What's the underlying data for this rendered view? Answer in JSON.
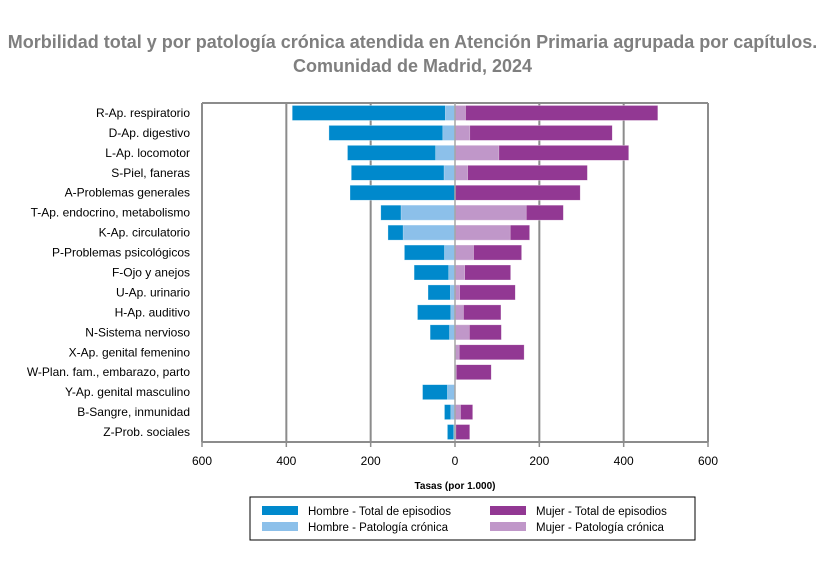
{
  "chart_data": {
    "type": "bar",
    "orientation": "horizontal-population-pyramid",
    "title": "Morbilidad total y por patología crónica atendida en Atención Primaria agrupada por capítulos. Comunidad de Madrid, 2024",
    "xlabel": "Tasas (por 1.000)",
    "ylabel": "",
    "xlim": [
      -600,
      600
    ],
    "xticks": [
      -600,
      -400,
      -200,
      0,
      200,
      400,
      600
    ],
    "xtick_labels": [
      "600",
      "400",
      "200",
      "0",
      "200",
      "400",
      "600"
    ],
    "grid": true,
    "legend_placement": "bottom",
    "categories": [
      "R-Ap. respiratorio",
      "D-Ap. digestivo",
      "L-Ap. locomotor",
      "S-Piel, faneras",
      "A-Problemas generales",
      "T-Ap. endocrino, metabolismo",
      "K-Ap. circulatorio",
      "P-Problemas psicológicos",
      "F-Ojo y anejos",
      "U-Ap. urinario",
      "H-Ap. auditivo",
      "N-Sistema nervioso",
      "X-Ap. genital femenino",
      "W-Plan. fam., embarazo, parto",
      "Y-Ap. genital masculino",
      "B-Sangre, inmunidad",
      "Z-Prob. sociales"
    ],
    "series": [
      {
        "name": "Hombre - Total de episodios",
        "color": "#0089CC",
        "side": "left",
        "values": [
          386,
          299,
          255,
          246,
          249,
          176,
          159,
          120,
          97,
          64,
          89,
          59,
          0,
          0,
          77,
          25,
          18
        ]
      },
      {
        "name": "Mujer - Total de episodios",
        "color": "#923893",
        "side": "right",
        "values": [
          481,
          373,
          412,
          314,
          297,
          257,
          177,
          158,
          132,
          143,
          109,
          110,
          164,
          86,
          0,
          42,
          35
        ]
      },
      {
        "name": "Hombre - Patología crónica",
        "color": "#8CC0EA",
        "side": "left",
        "values": [
          23,
          29,
          46,
          26,
          0,
          128,
          123,
          25,
          15,
          11,
          10,
          13,
          0,
          0,
          18,
          10,
          3
        ]
      },
      {
        "name": "Mujer - Patología crónica",
        "color": "#C097C9",
        "side": "right",
        "values": [
          25,
          35,
          104,
          30,
          0,
          169,
          131,
          44,
          23,
          11,
          20,
          34,
          10,
          3,
          0,
          13,
          2
        ]
      }
    ]
  }
}
